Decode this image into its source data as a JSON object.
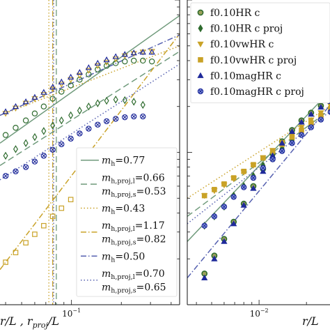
{
  "colors": {
    "green": "#2e6b2e",
    "sage": "#6f9a7b",
    "gold": "#c9a227",
    "goldDark": "#b8901a",
    "navy": "#1f2a9a",
    "slate": "#5560b0",
    "axis": "#111111"
  },
  "chart_data": [
    {
      "type": "line",
      "panel": "left",
      "xscale": "log",
      "yscale": "log",
      "xlabel": "r/L , r_proj/L",
      "xlabel_parts": {
        "a": "r/L , r",
        "sub": "proj",
        "b": "/L"
      },
      "xtick_labels": [
        {
          "value": 0.1,
          "base": "10",
          "exp": "−1"
        }
      ],
      "xlim": [
        0.037,
        0.45
      ],
      "ylim": [
        0.1,
        10
      ],
      "vlines": [
        {
          "x": 0.073,
          "style": "dotted",
          "color": "gold"
        },
        {
          "x": 0.077,
          "style": "dashdot",
          "color": "gold"
        },
        {
          "x": 0.078,
          "style": "dotted",
          "color": "slate"
        },
        {
          "x": 0.081,
          "style": "dashed",
          "color": "sage"
        }
      ],
      "series": [
        {
          "marker": "circle-open",
          "color": "green",
          "x": [
            0.04,
            0.046,
            0.053,
            0.06,
            0.068,
            0.077,
            0.087,
            0.099,
            0.112,
            0.127,
            0.144,
            0.163,
            0.185,
            0.21,
            0.238,
            0.27,
            0.306
          ],
          "y": [
            1.3,
            1.45,
            1.62,
            1.8,
            2.0,
            2.25,
            2.5,
            2.75,
            3.0,
            3.25,
            3.5,
            3.7,
            3.85,
            3.95,
            4.0,
            4.0,
            3.95
          ]
        },
        {
          "marker": "diamond-open",
          "color": "green",
          "x": [
            0.04,
            0.046,
            0.053,
            0.06,
            0.068,
            0.077,
            0.087,
            0.099,
            0.112,
            0.127,
            0.144,
            0.163,
            0.185,
            0.21,
            0.238,
            0.27
          ],
          "y": [
            0.95,
            1.05,
            1.15,
            1.26,
            1.38,
            1.5,
            1.62,
            1.75,
            1.88,
            2.0,
            2.1,
            2.18,
            2.22,
            2.2,
            2.15,
            2.05
          ]
        },
        {
          "marker": "triangle-down-open",
          "color": "gold",
          "x": [
            0.04,
            0.046,
            0.053,
            0.06,
            0.068,
            0.077,
            0.087,
            0.099,
            0.112,
            0.127,
            0.144,
            0.163,
            0.185,
            0.21,
            0.238,
            0.27,
            0.306
          ],
          "y": [
            1.8,
            1.95,
            2.1,
            2.25,
            2.4,
            2.6,
            2.8,
            3.0,
            3.2,
            3.45,
            3.7,
            3.9,
            4.1,
            4.3,
            4.45,
            4.55,
            4.6
          ]
        },
        {
          "marker": "square-open",
          "color": "gold",
          "x": [
            0.04,
            0.046,
            0.053,
            0.06,
            0.068,
            0.077,
            0.087,
            0.099,
            0.112,
            0.127,
            0.144,
            0.163,
            0.185,
            0.21,
            0.238
          ],
          "y": [
            0.19,
            0.22,
            0.255,
            0.29,
            0.33,
            0.38,
            0.43,
            0.49,
            0.56,
            0.64,
            0.73,
            0.82,
            0.9,
            0.95,
            0.97
          ]
        },
        {
          "marker": "triangle-up-open",
          "color": "navy",
          "x": [
            0.04,
            0.046,
            0.053,
            0.06,
            0.068,
            0.077,
            0.087,
            0.099,
            0.112,
            0.127,
            0.144,
            0.163,
            0.185,
            0.21,
            0.238,
            0.27,
            0.306
          ],
          "y": [
            1.85,
            2.0,
            2.15,
            2.3,
            2.48,
            2.68,
            2.9,
            3.12,
            3.35,
            3.6,
            3.85,
            4.05,
            4.25,
            4.4,
            4.5,
            4.55,
            4.55
          ]
        },
        {
          "marker": "cross-open",
          "color": "navy",
          "x": [
            0.04,
            0.046,
            0.053,
            0.06,
            0.068,
            0.077,
            0.087,
            0.099,
            0.112,
            0.127,
            0.144,
            0.163,
            0.185,
            0.21,
            0.238,
            0.27
          ],
          "y": [
            0.7,
            0.75,
            0.8,
            0.87,
            0.95,
            1.04,
            1.13,
            1.23,
            1.33,
            1.43,
            1.52,
            1.6,
            1.66,
            1.7,
            1.72,
            1.72
          ]
        }
      ],
      "fits": [
        {
          "style": "solid",
          "color": "sage",
          "x": [
            0.037,
            0.45
          ],
          "y": [
            1.15,
            7.9
          ]
        },
        {
          "style": "dashed",
          "color": "sage",
          "x": [
            0.037,
            0.45
          ],
          "y": [
            0.82,
            4.6
          ]
        },
        {
          "style": "dotted",
          "color": "gold",
          "x": [
            0.037,
            0.45
          ],
          "y": [
            1.75,
            5.0
          ]
        },
        {
          "style": "dashdot",
          "color": "gold",
          "x": [
            0.037,
            0.45
          ],
          "y": [
            0.17,
            6.0
          ]
        },
        {
          "style": "dashdot",
          "color": "slate",
          "x": [
            0.037,
            0.45
          ],
          "y": [
            1.75,
            5.9
          ]
        },
        {
          "style": "dotted",
          "color": "slate",
          "x": [
            0.037,
            0.45
          ],
          "y": [
            0.66,
            3.8
          ]
        }
      ],
      "legend": {
        "placement": "lower-right",
        "entries": [
          {
            "style": "solid",
            "color": "sage",
            "lines": [
              {
                "label": "m",
                "sub": "h",
                "value": "=0.77"
              }
            ]
          },
          {
            "style": "dashed",
            "color": "sage",
            "lines": [
              {
                "label": "m",
                "sub": "h,proj,l",
                "value": "=0.66"
              },
              {
                "label": "m",
                "sub": "h,proj,s",
                "value": "=0.53"
              }
            ]
          },
          {
            "style": "dotted",
            "color": "gold",
            "lines": [
              {
                "label": "m",
                "sub": "h",
                "value": "=0.43"
              }
            ]
          },
          {
            "style": "dashdot",
            "color": "gold",
            "lines": [
              {
                "label": "m",
                "sub": "h,proj,l",
                "value": "=1.17"
              },
              {
                "label": "m",
                "sub": "h,proj,s",
                "value": "=0.82"
              }
            ]
          },
          {
            "style": "dashdot",
            "color": "slate",
            "lines": [
              {
                "label": "m",
                "sub": "h",
                "value": "=0.50"
              }
            ]
          },
          {
            "style": "dotted",
            "color": "slate",
            "lines": [
              {
                "label": "m",
                "sub": "h,proj,l",
                "value": "=0.70"
              },
              {
                "label": "m",
                "sub": "h,proj,s",
                "value": "=0.65"
              }
            ]
          }
        ]
      }
    },
    {
      "type": "scatter",
      "panel": "right",
      "xscale": "log",
      "yscale": "log",
      "xlabel": "r/L",
      "xtick_labels": [
        {
          "value": 0.01,
          "base": "10",
          "exp": "−2"
        }
      ],
      "xlim": [
        0.0035,
        0.03
      ],
      "ylim": [
        0.1,
        10
      ],
      "series": [
        {
          "name": "f0.10HR c",
          "marker": "circle-filled",
          "color": "green",
          "x": [
            0.0045,
            0.0052,
            0.006,
            0.0069,
            0.008,
            0.0092,
            0.0106,
            0.0122,
            0.014,
            0.0162,
            0.0186,
            0.0214,
            0.0247,
            0.0285
          ],
          "y": [
            0.16,
            0.21,
            0.27,
            0.35,
            0.46,
            0.6,
            0.78,
            0.98,
            1.18,
            1.4,
            1.62,
            1.82,
            2.02,
            2.2
          ]
        },
        {
          "name": "f0.10HR c proj",
          "marker": "diamond-filled",
          "color": "green",
          "x": [
            0.0045,
            0.0052,
            0.006,
            0.0069,
            0.008,
            0.0092,
            0.0106,
            0.0122,
            0.014,
            0.0162,
            0.0186,
            0.0214,
            0.0247,
            0.0285
          ],
          "y": [
            0.33,
            0.38,
            0.44,
            0.52,
            0.6,
            0.7,
            0.82,
            0.94,
            1.06,
            1.2,
            1.35,
            1.52,
            1.7,
            1.9
          ]
        },
        {
          "name": "f0.10vwHR c",
          "marker": "triangle-down-filled",
          "color": "gold",
          "x": [
            0.0045,
            0.0052,
            0.006,
            0.0069,
            0.008,
            0.0092,
            0.0106,
            0.0122,
            0.014,
            0.0162,
            0.0186,
            0.0214,
            0.0247,
            0.0285
          ],
          "y": [
            0.52,
            0.56,
            0.61,
            0.67,
            0.74,
            0.82,
            0.92,
            1.03,
            1.16,
            1.3,
            1.46,
            1.63,
            1.82,
            2.02
          ]
        },
        {
          "name": "f0.10vwHR c proj",
          "marker": "square-filled",
          "color": "gold",
          "x": [
            0.0045,
            0.0052,
            0.006,
            0.0069,
            0.008,
            0.0092,
            0.0106,
            0.0122,
            0.014,
            0.0162,
            0.0186,
            0.0214,
            0.0247,
            0.0285
          ],
          "y": [
            0.52,
            0.57,
            0.62,
            0.68,
            0.75,
            0.83,
            0.92,
            1.02,
            1.13,
            1.26,
            1.4,
            1.56,
            1.74,
            1.94
          ]
        },
        {
          "name": "f0.10magHR c",
          "marker": "triangle-up-filled",
          "color": "navy",
          "x": [
            0.0045,
            0.0052,
            0.006,
            0.0069,
            0.008,
            0.0092,
            0.0106,
            0.0122,
            0.014,
            0.0162,
            0.0186,
            0.0214,
            0.0247,
            0.0285
          ],
          "y": [
            0.15,
            0.2,
            0.26,
            0.34,
            0.45,
            0.58,
            0.75,
            0.95,
            1.15,
            1.37,
            1.58,
            1.78,
            1.98,
            2.16
          ]
        },
        {
          "name": "f0.10magHR c proj",
          "marker": "cross-filled",
          "color": "navy",
          "x": [
            0.0045,
            0.0052,
            0.006,
            0.0069,
            0.008,
            0.0092,
            0.0106,
            0.0122,
            0.014,
            0.0162,
            0.0186,
            0.0214,
            0.0247,
            0.0285
          ],
          "y": [
            0.33,
            0.38,
            0.44,
            0.51,
            0.59,
            0.68,
            0.79,
            0.9,
            1.02,
            1.15,
            1.3,
            1.46,
            1.64,
            1.84
          ]
        }
      ],
      "fits": [
        {
          "style": "solid",
          "color": "sage",
          "x": [
            0.0035,
            0.03
          ],
          "y": [
            0.26,
            2.7
          ]
        },
        {
          "style": "dashed",
          "color": "sage",
          "x": [
            0.0035,
            0.03
          ],
          "y": [
            0.38,
            2.0
          ]
        },
        {
          "style": "dotted",
          "color": "gold",
          "x": [
            0.0035,
            0.03
          ],
          "y": [
            0.5,
            2.1
          ]
        },
        {
          "style": "dashdot",
          "color": "slate",
          "x": [
            0.0035,
            0.03
          ],
          "y": [
            0.15,
            2.2
          ]
        },
        {
          "style": "dotted",
          "color": "slate",
          "x": [
            0.0035,
            0.03
          ],
          "y": [
            0.34,
            1.95
          ]
        }
      ],
      "legend": {
        "placement": "upper-left"
      }
    }
  ]
}
